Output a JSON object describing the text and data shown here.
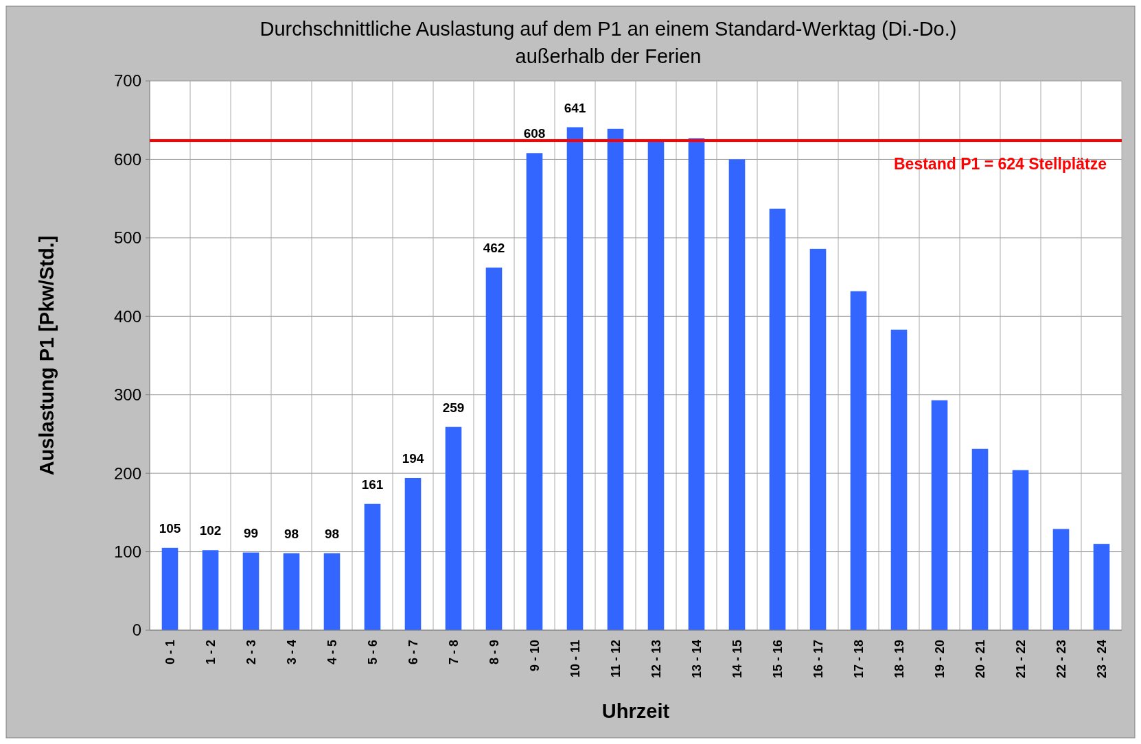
{
  "chart_data": {
    "type": "bar",
    "title": "Durchschnittliche Auslastung auf dem P1 an einem Standard-Werktag (Di.-Do.)",
    "subtitle": "außerhalb der Ferien",
    "xlabel": "Uhrzeit",
    "ylabel": "Auslastung P1 [Pkw/Std.]",
    "categories": [
      "0 - 1",
      "1 - 2",
      "2 - 3",
      "3 - 4",
      "4 - 5",
      "5 - 6",
      "6 - 7",
      "7 - 8",
      "8 - 9",
      "9 - 10",
      "10 - 11",
      "11 - 12",
      "12 - 13",
      "13 - 14",
      "14 - 15",
      "15 - 16",
      "16 - 17",
      "17 - 18",
      "18 - 19",
      "19 - 20",
      "20 - 21",
      "21 - 22",
      "22 - 23",
      "23 - 24"
    ],
    "values": [
      105,
      102,
      99,
      98,
      98,
      161,
      194,
      259,
      462,
      608,
      641,
      639,
      624,
      627,
      600,
      537,
      486,
      432,
      383,
      293,
      231,
      204,
      129,
      110
    ],
    "value_labels": [
      "105",
      "102",
      "99",
      "98",
      "98",
      "161",
      "194",
      "259",
      "462",
      "608",
      "641",
      null,
      null,
      null,
      null,
      null,
      null,
      null,
      null,
      null,
      null,
      null,
      null,
      null
    ],
    "color": "#3366ff",
    "ylim": [
      0,
      700
    ],
    "yticks": [
      0,
      100,
      200,
      300,
      400,
      500,
      600,
      700
    ],
    "grid": true,
    "ref_lines": [
      {
        "axis": "y",
        "value": 624,
        "label": "Bestand P1 = 624 Stellplätze",
        "color": "#ff0000"
      }
    ]
  }
}
